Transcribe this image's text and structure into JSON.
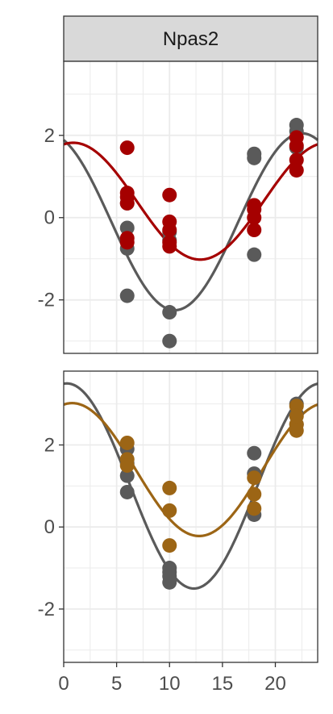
{
  "chart_data": [
    {
      "type": "scatter",
      "facet_label": "Npas2",
      "xlim": [
        0,
        24
      ],
      "ylim": [
        -3.3,
        3.8
      ],
      "yticks": [
        -2,
        0,
        2
      ],
      "grid": true,
      "series": [
        {
          "color": "#5a5a5a",
          "fit": {
            "mesor": -0.1,
            "amplitude": 2.15,
            "peak": 22.5
          },
          "points": [
            {
              "x": 6,
              "y": 0.35
            },
            {
              "x": 6,
              "y": -0.25
            },
            {
              "x": 6,
              "y": -0.75
            },
            {
              "x": 6,
              "y": -1.9
            },
            {
              "x": 10,
              "y": -0.35
            },
            {
              "x": 10,
              "y": -0.55
            },
            {
              "x": 10,
              "y": -2.3
            },
            {
              "x": 10,
              "y": -3.0
            },
            {
              "x": 18,
              "y": 1.55
            },
            {
              "x": 18,
              "y": 1.45
            },
            {
              "x": 18,
              "y": -0.9
            },
            {
              "x": 22,
              "y": 2.25
            },
            {
              "x": 22,
              "y": 2.1
            },
            {
              "x": 22,
              "y": 1.7
            }
          ]
        },
        {
          "color": "#a50000",
          "fit": {
            "mesor": 0.4,
            "amplitude": 1.42,
            "peak": 0.9
          },
          "points": [
            {
              "x": 6,
              "y": 1.7
            },
            {
              "x": 6,
              "y": 0.6
            },
            {
              "x": 6,
              "y": 0.5
            },
            {
              "x": 6,
              "y": 0.35
            },
            {
              "x": 6,
              "y": -0.5
            },
            {
              "x": 6,
              "y": -0.6
            },
            {
              "x": 10,
              "y": 0.55
            },
            {
              "x": 10,
              "y": -0.1
            },
            {
              "x": 10,
              "y": -0.3
            },
            {
              "x": 10,
              "y": -0.6
            },
            {
              "x": 10,
              "y": -0.7
            },
            {
              "x": 18,
              "y": 0.3
            },
            {
              "x": 18,
              "y": 0.2
            },
            {
              "x": 18,
              "y": 0.0
            },
            {
              "x": 18,
              "y": -0.3
            },
            {
              "x": 22,
              "y": 1.95
            },
            {
              "x": 22,
              "y": 1.75
            },
            {
              "x": 22,
              "y": 1.4
            },
            {
              "x": 22,
              "y": 1.15
            }
          ]
        }
      ]
    },
    {
      "type": "scatter",
      "xlim": [
        0,
        24
      ],
      "ylim": [
        -3.3,
        3.8
      ],
      "xticks": [
        0,
        5,
        10,
        15,
        20
      ],
      "yticks": [
        -2,
        0,
        2
      ],
      "grid": true,
      "series": [
        {
          "color": "#5a5a5a",
          "fit": {
            "mesor": 1.0,
            "amplitude": 2.5,
            "peak": 0.3
          },
          "points": [
            {
              "x": 6,
              "y": 1.9
            },
            {
              "x": 6,
              "y": 1.55
            },
            {
              "x": 6,
              "y": 1.25
            },
            {
              "x": 6,
              "y": 0.85
            },
            {
              "x": 10,
              "y": -1.0
            },
            {
              "x": 10,
              "y": -1.1
            },
            {
              "x": 10,
              "y": -1.2
            },
            {
              "x": 10,
              "y": -1.35
            },
            {
              "x": 18,
              "y": 1.8
            },
            {
              "x": 18,
              "y": 1.3
            },
            {
              "x": 18,
              "y": 0.3
            },
            {
              "x": 22,
              "y": 3.0
            },
            {
              "x": 22,
              "y": 2.75
            },
            {
              "x": 22,
              "y": 2.5
            }
          ]
        },
        {
          "color": "#9c6515",
          "fit": {
            "mesor": 1.4,
            "amplitude": 1.62,
            "peak": 0.8
          },
          "points": [
            {
              "x": 6,
              "y": 2.05
            },
            {
              "x": 6,
              "y": 1.65
            },
            {
              "x": 6,
              "y": 1.5
            },
            {
              "x": 10,
              "y": 0.95
            },
            {
              "x": 10,
              "y": 0.4
            },
            {
              "x": 10,
              "y": -0.45
            },
            {
              "x": 18,
              "y": 1.2
            },
            {
              "x": 18,
              "y": 0.8
            },
            {
              "x": 18,
              "y": 0.45
            },
            {
              "x": 22,
              "y": 2.95
            },
            {
              "x": 22,
              "y": 2.7
            },
            {
              "x": 22,
              "y": 2.5
            },
            {
              "x": 22,
              "y": 2.35
            }
          ]
        }
      ]
    }
  ]
}
